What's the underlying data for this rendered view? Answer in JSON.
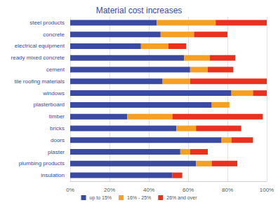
{
  "chart_data": {
    "type": "bar",
    "title": "Material cost increases",
    "orientation": "horizontal",
    "stacked": true,
    "grid": true,
    "legend": "bottom",
    "categories": [
      "steel products",
      "concrete",
      "electrical equipment",
      "ready mixed concrete",
      "cement",
      "tile roofing materials",
      "windows",
      "plasterboard",
      "timber",
      "bricks",
      "doors",
      "plaster",
      "plumbing products",
      "insulation"
    ],
    "series": [
      {
        "name": "up to 15%",
        "color": "#3a4aa2",
        "values": [
          44,
          46,
          36,
          58,
          61,
          47,
          82,
          72,
          29,
          54,
          77,
          56,
          64,
          52
        ]
      },
      {
        "name": "16% - 25%",
        "color": "#f5a023",
        "values": [
          30,
          17,
          14,
          13,
          9,
          14,
          11,
          9,
          23,
          10,
          5,
          5,
          8,
          0
        ]
      },
      {
        "name": "26% and over",
        "color": "#e8321e",
        "values": [
          26,
          17,
          9,
          13,
          13,
          39,
          7,
          0,
          46,
          23,
          11,
          9,
          13,
          5
        ]
      }
    ],
    "xlim": [
      0,
      100
    ],
    "xticks": [
      {
        "value": 0,
        "label": "0%"
      },
      {
        "value": 20,
        "label": "20%"
      },
      {
        "value": 40,
        "label": "40%"
      },
      {
        "value": 60,
        "label": "60%"
      },
      {
        "value": 80,
        "label": "80%"
      },
      {
        "value": 100,
        "label": "100%"
      }
    ]
  }
}
